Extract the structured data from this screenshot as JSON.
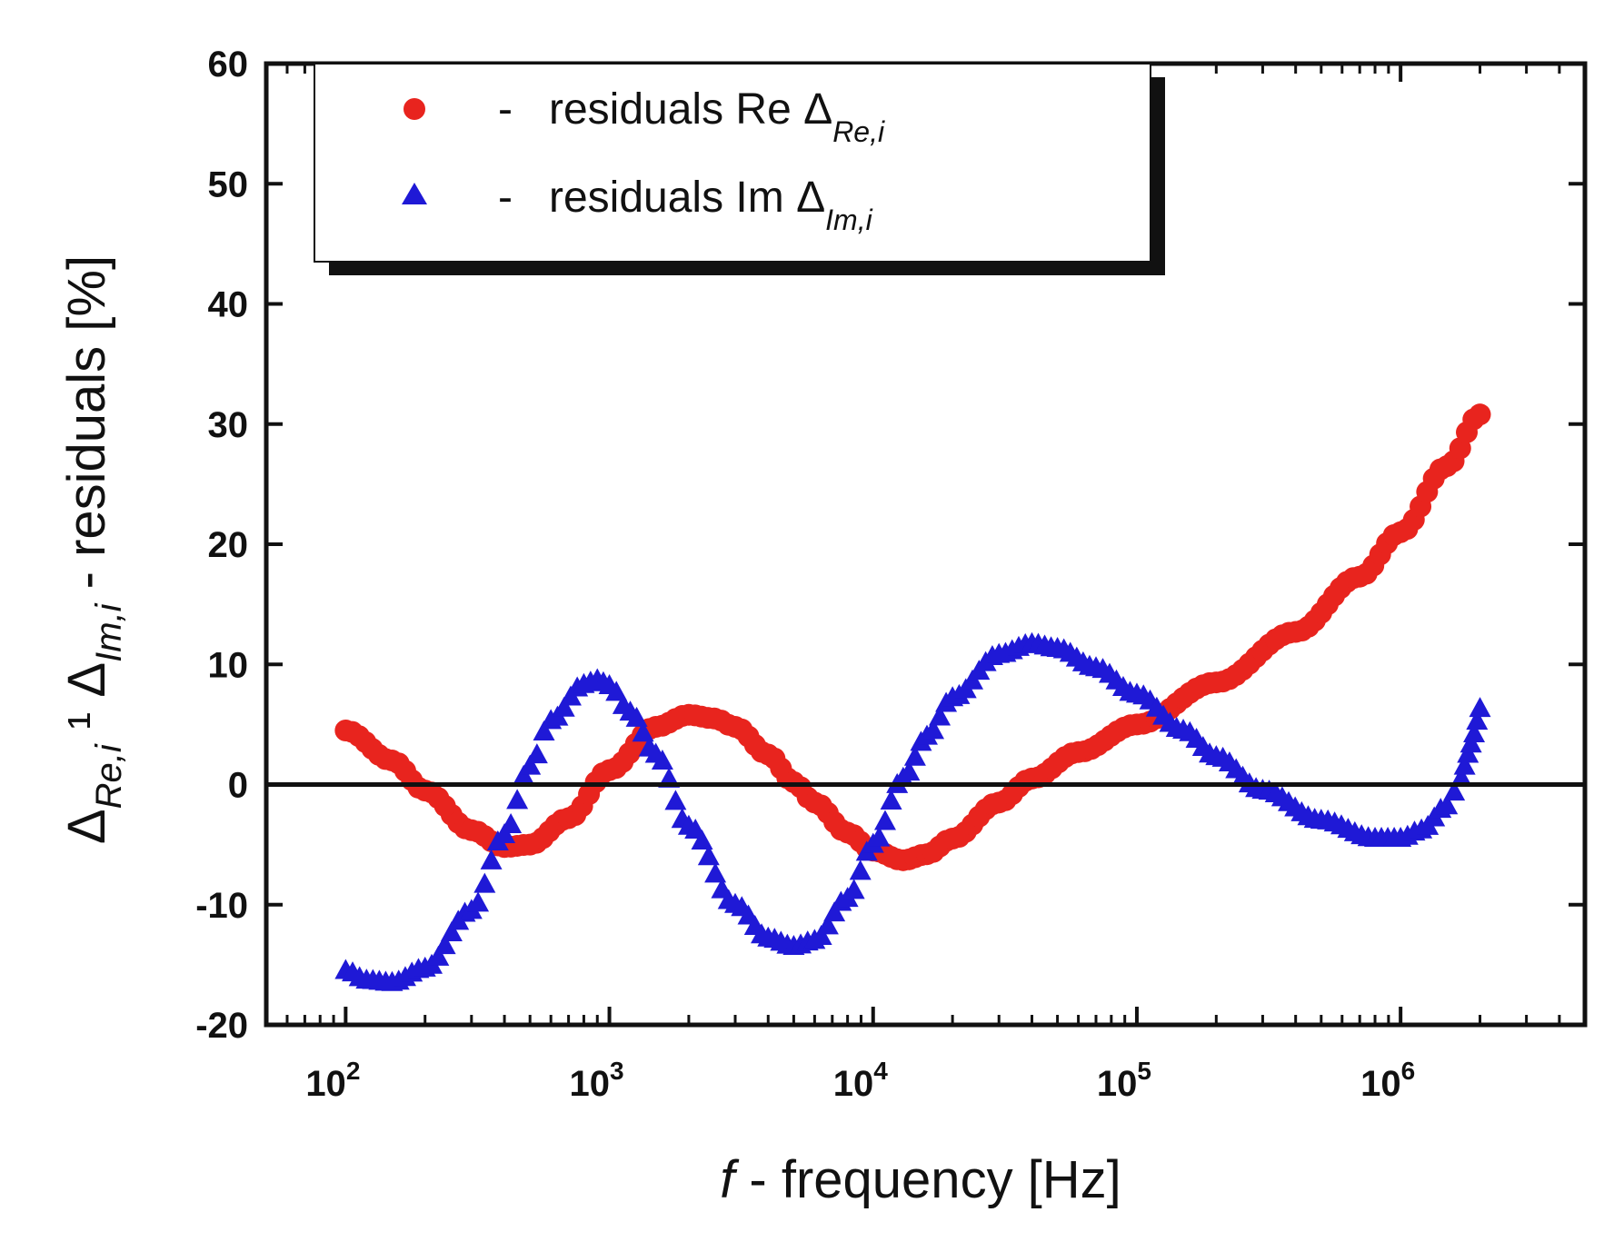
{
  "chart_data": {
    "type": "scatter",
    "title": "",
    "xscale": "log",
    "xlim": [
      50,
      5000000
    ],
    "ylim": [
      -20,
      60
    ],
    "x_ticks": [
      100,
      1000,
      10000,
      100000,
      1000000
    ],
    "x_tick_labels": [
      {
        "base": "10",
        "exp": "2"
      },
      {
        "base": "10",
        "exp": "3"
      },
      {
        "base": "10",
        "exp": "4"
      },
      {
        "base": "10",
        "exp": "5"
      },
      {
        "base": "10",
        "exp": "6"
      }
    ],
    "y_ticks": [
      -20,
      -10,
      0,
      10,
      20,
      30,
      40,
      50,
      60
    ],
    "y_tick_labels": [
      "-20",
      "-10",
      "0",
      "10",
      "20",
      "30",
      "40",
      "50",
      "60"
    ],
    "reference_line_y": 0,
    "xlabel": {
      "italic": "f",
      "rest": " - frequency [Hz]"
    },
    "ylabel": {
      "delta": "Δ",
      "sub1": "Re,i",
      "sep": " ¹ ",
      "sub2": "Im,i",
      "rest": " - residuals [%]"
    },
    "series": [
      {
        "name": "residuals Re",
        "legend": {
          "dash": "-",
          "text": "residuals Re ",
          "delta": "Δ",
          "sub": "Re,i"
        },
        "marker": "circle",
        "color": "#e8241e",
        "points": [
          [
            100,
            4.5
          ],
          [
            150,
            2
          ],
          [
            200,
            -0.5
          ],
          [
            300,
            -3.8
          ],
          [
            400,
            -5.2
          ],
          [
            500,
            -5.0
          ],
          [
            700,
            -2.8
          ],
          [
            1000,
            1.2
          ],
          [
            1500,
            4.8
          ],
          [
            2000,
            5.8
          ],
          [
            2500,
            5.5
          ],
          [
            3000,
            4.8
          ],
          [
            4000,
            2.5
          ],
          [
            5000,
            0.2
          ],
          [
            6000,
            -1.5
          ],
          [
            8000,
            -4.0
          ],
          [
            10000,
            -5.5
          ],
          [
            13000,
            -6.3
          ],
          [
            16000,
            -5.8
          ],
          [
            20000,
            -4.5
          ],
          [
            30000,
            -1.5
          ],
          [
            40000,
            0.5
          ],
          [
            60000,
            2.7
          ],
          [
            100000,
            5.0
          ],
          [
            200000,
            8.5
          ],
          [
            400000,
            12.7
          ],
          [
            700000,
            17.3
          ],
          [
            1000000,
            21.0
          ],
          [
            1500000,
            26.5
          ],
          [
            2000000,
            30.8
          ]
        ]
      },
      {
        "name": "residuals Im",
        "legend": {
          "dash": "-",
          "text": "residuals Im ",
          "delta": "Δ",
          "sub": "Im,i"
        },
        "marker": "triangle",
        "color": "#1f19d6",
        "points": [
          [
            100,
            -15.5
          ],
          [
            120,
            -16.3
          ],
          [
            150,
            -16.5
          ],
          [
            200,
            -15.3
          ],
          [
            300,
            -10.5
          ],
          [
            400,
            -4.2
          ],
          [
            500,
            1.5
          ],
          [
            600,
            5.3
          ],
          [
            800,
            8.3
          ],
          [
            900,
            8.7
          ],
          [
            1000,
            8.2
          ],
          [
            1200,
            6.0
          ],
          [
            1500,
            2.5
          ],
          [
            2000,
            -3.5
          ],
          [
            3000,
            -10.0
          ],
          [
            4000,
            -12.8
          ],
          [
            5000,
            -13.5
          ],
          [
            6000,
            -13.0
          ],
          [
            8000,
            -9.5
          ],
          [
            10000,
            -5.0
          ],
          [
            13000,
            0.5
          ],
          [
            16000,
            4.0
          ],
          [
            20000,
            7.2
          ],
          [
            30000,
            10.8
          ],
          [
            40000,
            11.7
          ],
          [
            50000,
            11.3
          ],
          [
            70000,
            9.7
          ],
          [
            100000,
            7.5
          ],
          [
            150000,
            4.5
          ],
          [
            200000,
            2.3
          ],
          [
            300000,
            -0.5
          ],
          [
            500000,
            -3.0
          ],
          [
            800000,
            -4.5
          ],
          [
            1000000,
            -4.5
          ],
          [
            1200000,
            -3.8
          ],
          [
            1500000,
            -1.8
          ],
          [
            1700000,
            0.5
          ],
          [
            1800000,
            2.5
          ],
          [
            1900000,
            4.2
          ],
          [
            2000000,
            6.3
          ]
        ]
      }
    ]
  }
}
